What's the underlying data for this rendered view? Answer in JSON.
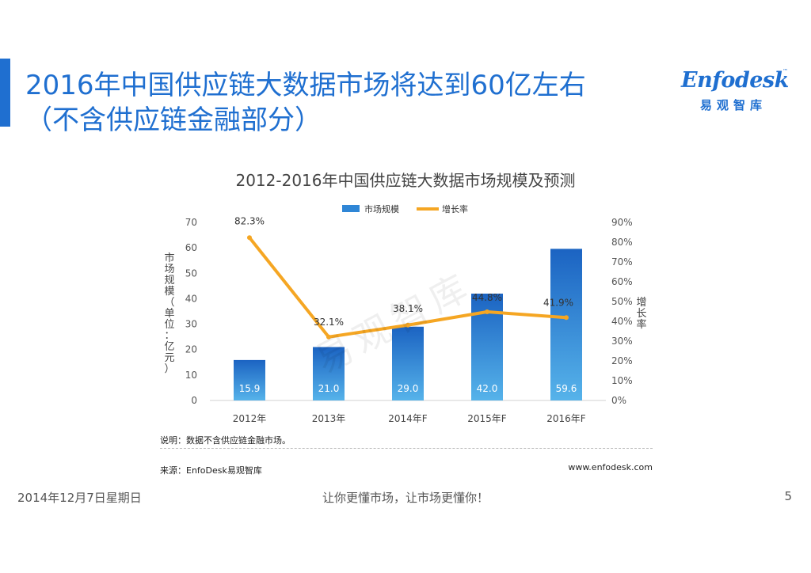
{
  "slide": {
    "title_line1": "2016年中国供应链大数据市场将达到60亿左右",
    "title_line2": "（不含供应链金融部分）",
    "accent_color": "#1f6fd0"
  },
  "logo": {
    "word": "Enfodesk",
    "tm": "™",
    "cn": "易观智库"
  },
  "watermark": "易观智库",
  "chart_data": {
    "type": "bar",
    "title": "2012-2016年中国供应链大数据市场规模及预测",
    "categories": [
      "2012年",
      "2013年",
      "2014年F",
      "2015年F",
      "2016年F"
    ],
    "series": [
      {
        "name": "市场规模",
        "type": "bar",
        "axis": "left",
        "values": [
          15.9,
          21.0,
          29.0,
          42.0,
          59.6
        ],
        "labels": [
          "15.9",
          "21.0",
          "29.0",
          "42.0",
          "59.6"
        ],
        "color": "#2f86d6"
      },
      {
        "name": "增长率",
        "type": "line",
        "axis": "right",
        "values": [
          82.3,
          32.1,
          38.1,
          44.8,
          41.9
        ],
        "labels": [
          "82.3%",
          "32.1%",
          "38.1%",
          "44.8%",
          "41.9%"
        ],
        "color": "#f5a623"
      }
    ],
    "ylabel": "市场规模（单位：亿元）",
    "y2label": "增长率",
    "ylim": [
      0,
      70
    ],
    "y2lim": [
      0,
      90
    ],
    "yticks": [
      "0",
      "10",
      "20",
      "30",
      "40",
      "50",
      "60",
      "70"
    ],
    "y2ticks": [
      "0%",
      "10%",
      "20%",
      "30%",
      "40%",
      "50%",
      "60%",
      "70%",
      "80%",
      "90%"
    ],
    "grid": false,
    "legend": "top"
  },
  "notes": {
    "explain": "说明：数据不含供应链金融市场。",
    "source": "来源：EnfoDesk易观智库",
    "website": "www.enfodesk.com"
  },
  "footer": {
    "date": "2014年12月7日星期日",
    "slogan": "让你更懂市场，让市场更懂你！",
    "page": "5"
  }
}
